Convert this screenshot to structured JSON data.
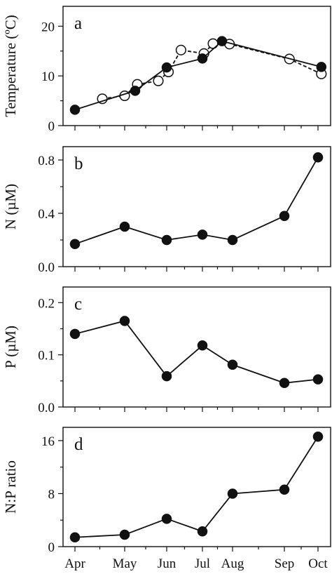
{
  "figure": {
    "x_months": [
      "Apr",
      "May",
      "Jun",
      "Jul",
      "Aug",
      "Sep",
      "Oct"
    ]
  },
  "chart_data": [
    {
      "type": "line",
      "panel_label": "a",
      "ylabel": "Temperature (ºC)",
      "ylim": [
        0,
        24
      ],
      "yticks": [
        0,
        10,
        20
      ],
      "minor_yticks": [
        5,
        15
      ],
      "xlim": [
        0,
        6.5
      ],
      "series": [
        {
          "marker": "filled-circle",
          "line": "solid",
          "x": [
            0,
            1.25,
            2,
            3,
            3.65,
            6.1
          ],
          "y": [
            3.2,
            7.0,
            11.7,
            13.5,
            17.0,
            11.8
          ]
        },
        {
          "marker": "open-circle",
          "line": "dashed",
          "x": [
            0.55,
            1,
            1.3,
            1.8,
            2.05,
            2.4,
            3.05,
            3.35,
            3.9,
            5.15,
            6.1
          ],
          "y": [
            5.4,
            6.0,
            8.3,
            9.0,
            10.8,
            15.2,
            14.5,
            16.5,
            16.4,
            13.4,
            10.4
          ]
        }
      ]
    },
    {
      "type": "line",
      "panel_label": "b",
      "ylabel": "N (µM)",
      "ylim": [
        0,
        0.9
      ],
      "yticks": [
        "0.0",
        "0.4",
        "0.8"
      ],
      "minor_yticks": [
        0.2,
        0.6
      ],
      "xlim": [
        0,
        6.5
      ],
      "series": [
        {
          "marker": "filled-circle",
          "line": "solid",
          "x": [
            0,
            1,
            2,
            3,
            4,
            5,
            6
          ],
          "y": [
            0.17,
            0.3,
            0.2,
            0.24,
            0.2,
            0.38,
            0.82
          ]
        }
      ]
    },
    {
      "type": "line",
      "panel_label": "c",
      "ylabel": "P (µM)",
      "ylim": [
        0,
        0.23
      ],
      "yticks": [
        "0.0",
        "0.1",
        "0.2"
      ],
      "minor_yticks": [
        0.05,
        0.15
      ],
      "xlim": [
        0,
        6.5
      ],
      "series": [
        {
          "marker": "filled-circle",
          "line": "solid",
          "x": [
            0,
            1,
            2,
            3,
            4,
            5,
            6
          ],
          "y": [
            0.14,
            0.165,
            0.059,
            0.118,
            0.081,
            0.046,
            0.053
          ]
        }
      ]
    },
    {
      "type": "line",
      "panel_label": "d",
      "ylabel": "N:P ratio",
      "ylim": [
        0,
        18
      ],
      "yticks": [
        0,
        8,
        16
      ],
      "minor_yticks": [
        4,
        12
      ],
      "xlim": [
        0,
        6.5
      ],
      "series": [
        {
          "marker": "filled-circle",
          "line": "solid",
          "x": [
            0,
            1,
            2,
            3,
            4,
            5,
            6
          ],
          "y": [
            1.4,
            1.8,
            4.2,
            2.3,
            8.0,
            8.6,
            16.6
          ]
        }
      ]
    }
  ]
}
